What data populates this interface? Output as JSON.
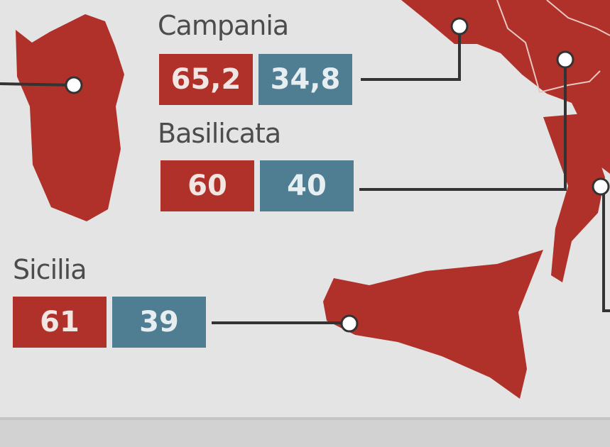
{
  "colors": {
    "first_value": "#b0312a",
    "second_value": "#4f7e92",
    "land": "#b0312a",
    "background": "#e4e4e4"
  },
  "regions": [
    {
      "name": "Campania",
      "values": [
        "65,2",
        "34,8"
      ]
    },
    {
      "name": "Basilicata",
      "values": [
        "60",
        "40"
      ]
    },
    {
      "name": "Sicilia",
      "values": [
        "61",
        "39"
      ]
    }
  ]
}
